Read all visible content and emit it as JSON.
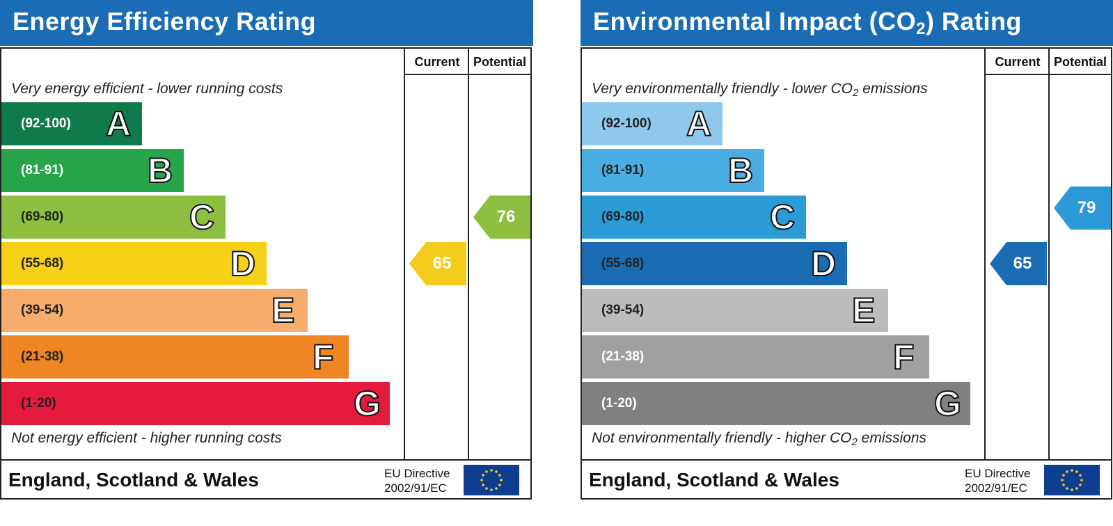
{
  "charts": [
    {
      "title": "Energy Efficiency Rating",
      "title_sub": "",
      "title_suffix": "",
      "current_label": "Current",
      "potential_label": "Potential",
      "top_note": "Very energy efficient - lower running costs",
      "top_note_sub": "",
      "top_note_suffix": "",
      "bottom_note": "Not energy efficient - higher running costs",
      "bottom_note_sub": "",
      "bottom_note_suffix": "",
      "region": "England, Scotland & Wales",
      "directive_line1": "EU Directive",
      "directive_line2": "2002/91/EC",
      "current": {
        "value": "65",
        "band": "D",
        "color": "#f2cb1b"
      },
      "potential": {
        "value": "76",
        "band": "C",
        "color": "#8cbf3f"
      },
      "bands": [
        {
          "range": "(92-100)",
          "letter": "A",
          "color": "#0f7a4a",
          "text_color": "#ffffff"
        },
        {
          "range": "(81-91)",
          "letter": "B",
          "color": "#27a54a",
          "text_color": "#ffffff"
        },
        {
          "range": "(69-80)",
          "letter": "C",
          "color": "#8cbf3f",
          "text_color": "#222222"
        },
        {
          "range": "(55-68)",
          "letter": "D",
          "color": "#f7d018",
          "text_color": "#222222"
        },
        {
          "range": "(39-54)",
          "letter": "E",
          "color": "#f5ac6c",
          "text_color": "#222222"
        },
        {
          "range": "(21-38)",
          "letter": "F",
          "color": "#ef8523",
          "text_color": "#222222"
        },
        {
          "range": "(1-20)",
          "letter": "G",
          "color": "#e51b3d",
          "text_color": "#222222"
        }
      ]
    },
    {
      "title": "Environmental Impact (CO",
      "title_sub": "2",
      "title_suffix": ") Rating",
      "current_label": "Current",
      "potential_label": "Potential",
      "top_note": "Very environmentally friendly - lower CO",
      "top_note_sub": "2",
      "top_note_suffix": " emissions",
      "bottom_note": "Not environmentally friendly - higher CO",
      "bottom_note_sub": "2",
      "bottom_note_suffix": " emissions",
      "region": "England, Scotland & Wales",
      "directive_line1": "EU Directive",
      "directive_line2": "2002/91/EC",
      "current": {
        "value": "65",
        "band": "D",
        "color": "#1a6db5"
      },
      "potential": {
        "value": "79",
        "band": "C",
        "color": "#2b9ad6"
      },
      "bands": [
        {
          "range": "(92-100)",
          "letter": "A",
          "color": "#8ec8ec",
          "text_color": "#222222"
        },
        {
          "range": "(81-91)",
          "letter": "B",
          "color": "#4aade2",
          "text_color": "#222222"
        },
        {
          "range": "(69-80)",
          "letter": "C",
          "color": "#2a9bd5",
          "text_color": "#222222"
        },
        {
          "range": "(55-68)",
          "letter": "D",
          "color": "#1a6db5",
          "text_color": "#222222"
        },
        {
          "range": "(39-54)",
          "letter": "E",
          "color": "#bcbcbc",
          "text_color": "#222222"
        },
        {
          "range": "(21-38)",
          "letter": "F",
          "color": "#a0a0a0",
          "text_color": "#ffffff"
        },
        {
          "range": "(1-20)",
          "letter": "G",
          "color": "#808080",
          "text_color": "#ffffff"
        }
      ]
    }
  ]
}
